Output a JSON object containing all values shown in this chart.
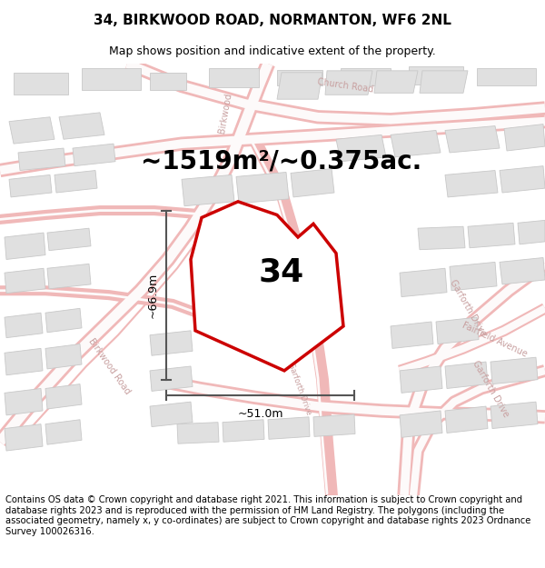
{
  "title": "34, BIRKWOOD ROAD, NORMANTON, WF6 2NL",
  "subtitle": "Map shows position and indicative extent of the property.",
  "area_text": "~1519m²/~0.375ac.",
  "label_34": "34",
  "dim_height": "~66.9m",
  "dim_width": "~51.0m",
  "footer": "Contains OS data © Crown copyright and database right 2021. This information is subject to Crown copyright and database rights 2023 and is reproduced with the permission of HM Land Registry. The polygons (including the associated geometry, namely x, y co-ordinates) are subject to Crown copyright and database rights 2023 Ordnance Survey 100026316.",
  "bg_color": "#ffffff",
  "map_bg": "#f7f2f2",
  "road_outline_color": "#f0b8b8",
  "road_fill_color": "#faf0f0",
  "building_color": "#e0e0e0",
  "building_edge": "#c8c8c8",
  "plot_color": "#cc0000",
  "plot_fill": "#ffffff",
  "dim_color": "#555555",
  "title_fontsize": 11,
  "subtitle_fontsize": 9,
  "area_fontsize": 20,
  "label_fontsize": 26,
  "footer_fontsize": 7.2,
  "road_label_color": "#c8a0a0",
  "road_label_size": 7
}
